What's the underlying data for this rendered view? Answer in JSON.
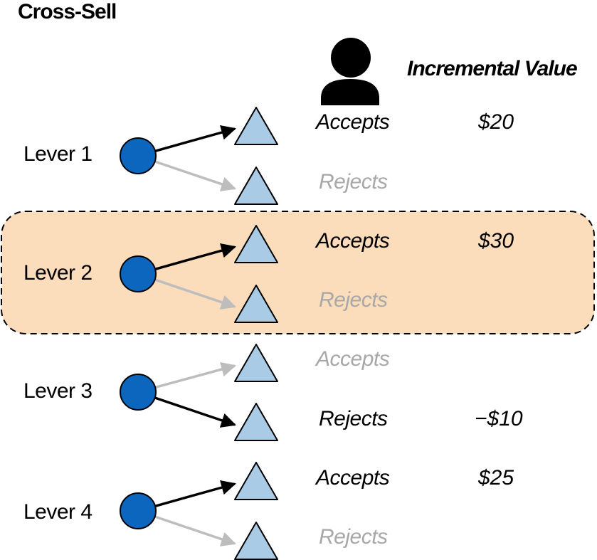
{
  "title": "Cross-Sell",
  "column_header": "Incremental Value",
  "colors": {
    "highlight_fill": "#fbdcbb",
    "node_fill": "#0c66bd",
    "triangle_fill": "#a9cbe6",
    "active_arrow": "#000000",
    "inactive_arrow": "#bdbdbd"
  },
  "icons": {
    "person": "person-icon"
  },
  "levers": [
    {
      "label": "Lever 1",
      "highlighted": false,
      "outcomes": [
        {
          "label": "Accepts",
          "active": true,
          "value": "$20"
        },
        {
          "label": "Rejects",
          "active": false,
          "value": ""
        }
      ]
    },
    {
      "label": "Lever 2",
      "highlighted": true,
      "outcomes": [
        {
          "label": "Accepts",
          "active": true,
          "value": "$30"
        },
        {
          "label": "Rejects",
          "active": false,
          "value": ""
        }
      ]
    },
    {
      "label": "Lever 3",
      "highlighted": false,
      "outcomes": [
        {
          "label": "Accepts",
          "active": false,
          "value": ""
        },
        {
          "label": "Rejects",
          "active": true,
          "value": "−$10"
        }
      ]
    },
    {
      "label": "Lever 4",
      "highlighted": false,
      "outcomes": [
        {
          "label": "Accepts",
          "active": true,
          "value": "$25"
        },
        {
          "label": "Rejects",
          "active": false,
          "value": ""
        }
      ]
    }
  ]
}
